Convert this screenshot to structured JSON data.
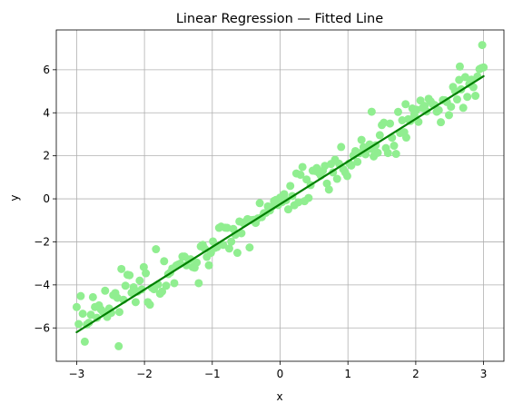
{
  "chart_data": {
    "type": "scatter",
    "title": "Linear Regression — Fitted Line",
    "xlabel": "x",
    "ylabel": "y",
    "xlim": [
      -3.3,
      3.3
    ],
    "ylim": [
      -7.55,
      7.85
    ],
    "x_ticks": [
      -3,
      -2,
      -1,
      0,
      1,
      2,
      3
    ],
    "x_tick_labels": [
      "−3",
      "−2",
      "−1",
      "0",
      "1",
      "2",
      "3"
    ],
    "y_ticks": [
      -6,
      -4,
      -2,
      0,
      2,
      4,
      6
    ],
    "y_tick_labels": [
      "−6",
      "−4",
      "−2",
      "0",
      "2",
      "4",
      "6"
    ],
    "grid": true,
    "point_color": "#90ee90",
    "line_color": "#008000",
    "fit_line": {
      "x": [
        -3,
        3
      ],
      "y": [
        -6.2,
        5.7
      ]
    },
    "points": {
      "x": [
        -3.0,
        -2.97,
        -2.94,
        -2.91,
        -2.88,
        -2.85,
        -2.82,
        -2.79,
        -2.76,
        -2.73,
        -2.7,
        -2.67,
        -2.64,
        -2.61,
        -2.58,
        -2.55,
        -2.52,
        -2.49,
        -2.46,
        -2.43,
        -2.4,
        -2.37,
        -2.34,
        -2.31,
        -2.28,
        -2.25,
        -2.22,
        -2.19,
        -2.16,
        -2.13,
        -2.1,
        -2.07,
        -2.04,
        -2.01,
        -1.98,
        -1.95,
        -1.92,
        -1.89,
        -1.86,
        -1.83,
        -1.8,
        -1.77,
        -1.74,
        -1.71,
        -1.68,
        -1.65,
        -1.62,
        -1.59,
        -1.56,
        -1.53,
        -1.5,
        -1.47,
        -1.44,
        -1.41,
        -1.38,
        -1.35,
        -1.32,
        -1.29,
        -1.26,
        -1.23,
        -1.2,
        -1.17,
        -1.14,
        -1.11,
        -1.08,
        -1.05,
        -1.02,
        -0.99,
        -0.96,
        -0.93,
        -0.9,
        -0.87,
        -0.84,
        -0.81,
        -0.78,
        -0.75,
        -0.72,
        -0.69,
        -0.66,
        -0.63,
        -0.6,
        -0.57,
        -0.54,
        -0.51,
        -0.48,
        -0.45,
        -0.42,
        -0.39,
        -0.36,
        -0.33,
        -0.3,
        -0.27,
        -0.24,
        -0.21,
        -0.18,
        -0.15,
        -0.12,
        -0.09,
        -0.06,
        -0.03,
        0.0,
        0.03,
        0.06,
        0.09,
        0.12,
        0.15,
        0.18,
        0.21,
        0.24,
        0.27,
        0.3,
        0.33,
        0.36,
        0.39,
        0.42,
        0.45,
        0.48,
        0.51,
        0.54,
        0.57,
        0.6,
        0.63,
        0.66,
        0.69,
        0.72,
        0.75,
        0.78,
        0.81,
        0.84,
        0.87,
        0.9,
        0.93,
        0.96,
        0.99,
        1.02,
        1.05,
        1.08,
        1.11,
        1.14,
        1.17,
        1.2,
        1.23,
        1.26,
        1.29,
        1.32,
        1.35,
        1.38,
        1.41,
        1.44,
        1.47,
        1.5,
        1.53,
        1.56,
        1.59,
        1.62,
        1.65,
        1.68,
        1.71,
        1.74,
        1.77,
        1.8,
        1.83,
        1.86,
        1.89,
        1.92,
        1.95,
        1.98,
        2.01,
        2.04,
        2.07,
        2.1,
        2.13,
        2.16,
        2.19,
        2.22,
        2.25,
        2.28,
        2.31,
        2.34,
        2.37,
        2.4,
        2.43,
        2.46,
        2.49,
        2.52,
        2.55,
        2.58,
        2.61,
        2.64,
        2.67,
        2.7,
        2.73,
        2.76,
        2.79,
        2.82,
        2.85,
        2.88,
        2.91,
        2.94,
        2.97,
        3.0,
        -2.38,
        1.35,
        1.85,
        2.65,
        2.98
      ],
      "y": [
        -5.03,
        -5.82,
        -4.52,
        -5.34,
        -6.64,
        -5.84,
        -5.76,
        -5.39,
        -4.57,
        -5.03,
        -5.53,
        -4.95,
        -5.15,
        -5.26,
        -4.27,
        -5.49,
        -5.1,
        -5.3,
        -4.48,
        -4.38,
        -4.6,
        -5.26,
        -3.26,
        -4.69,
        -4.04,
        -3.53,
        -3.55,
        -4.36,
        -4.11,
        -4.8,
        -4.31,
        -3.8,
        -4.21,
        -3.17,
        -3.46,
        -4.8,
        -4.92,
        -4.13,
        -4.2,
        -2.34,
        -3.98,
        -4.41,
        -4.31,
        -2.9,
        -4.04,
        -3.5,
        -3.43,
        -3.24,
        -3.92,
        -3.1,
        -3.05,
        -3.01,
        -2.68,
        -2.68,
        -3.09,
        -2.82,
        -2.81,
        -3.17,
        -3.2,
        -2.96,
        -3.92,
        -2.21,
        -2.14,
        -2.32,
        -2.7,
        -3.09,
        -2.51,
        -1.98,
        -2.28,
        -2.24,
        -1.35,
        -1.29,
        -2.14,
        -1.34,
        -1.35,
        -2.31,
        -1.99,
        -1.4,
        -1.67,
        -2.51,
        -1.05,
        -1.6,
        -1.13,
        -1.06,
        -0.94,
        -2.26,
        -0.99,
        -0.98,
        -1.12,
        -0.91,
        -0.2,
        -0.85,
        -0.67,
        -0.65,
        -0.35,
        -0.54,
        -0.36,
        -0.1,
        -0.05,
        -0.29,
        0.06,
        -0.15,
        0.22,
        -0.06,
        -0.49,
        0.6,
        0.13,
        -0.3,
        1.18,
        -0.16,
        1.12,
        1.48,
        -0.11,
        0.9,
        0.04,
        0.64,
        1.31,
        1.3,
        1.43,
        1.21,
        1.08,
        1.3,
        1.53,
        0.71,
        0.43,
        1.62,
        1.23,
        1.82,
        0.93,
        1.63,
        2.41,
        1.38,
        1.23,
        1.06,
        1.65,
        1.55,
        2.01,
        2.22,
        1.72,
        2.12,
        2.74,
        2.4,
        2.07,
        2.33,
        2.53,
        2.32,
        1.97,
        2.49,
        2.14,
        2.96,
        3.43,
        3.54,
        2.36,
        2.13,
        3.5,
        2.84,
        2.47,
        2.09,
        4.04,
        3.06,
        3.65,
        3.1,
        2.85,
        3.7,
        3.62,
        4.2,
        3.91,
        4.14,
        3.58,
        4.57,
        4.22,
        4.32,
        4.06,
        4.65,
        4.53,
        4.4,
        4.36,
        4.05,
        4.12,
        3.56,
        4.59,
        4.58,
        4.5,
        3.89,
        4.28,
        5.2,
        5.01,
        4.62,
        5.53,
        5.09,
        4.23,
        5.66,
        4.74,
        5.34,
        5.54,
        5.19,
        4.79,
        5.69,
        6.03,
        6.08,
        6.11,
        -6.85,
        4.05,
        4.4,
        6.15,
        7.15
      ]
    }
  }
}
